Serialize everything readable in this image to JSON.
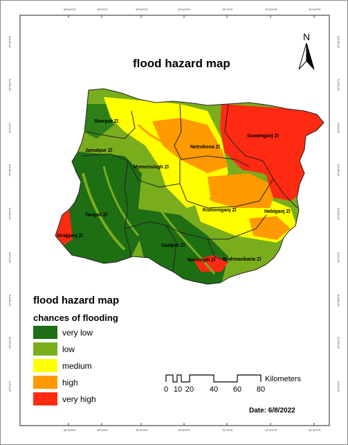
{
  "map": {
    "title": "flood hazard map",
    "north_label": "N",
    "date": "Date: 6/8/2022",
    "ticks": {
      "top": [
        "89°40'0\"E",
        "90°0'0\"E",
        "90°20'0\"E",
        "90°40'0\"E",
        "91°0'0\"E",
        "91°20'0\"E",
        "91°40'0\"E"
      ],
      "bottom": [
        "89°40'0\"E",
        "90°0'0\"E",
        "90°20'0\"E",
        "90°40'0\"E",
        "91°0'0\"E",
        "91°20'0\"E",
        "91°40'0\"E"
      ],
      "left": [
        "25°40'0\"N",
        "25°20'0\"N",
        "25°0'0\"N",
        "24°40'0\"N",
        "24°20'0\"N",
        "24°0'0\"N",
        "23°40'0\"N",
        "23°20'0\"N",
        "23°0'0\"N"
      ],
      "right": [
        "25°40'0\"N",
        "25°20'0\"N",
        "25°0'0\"N",
        "24°40'0\"N",
        "24°20'0\"N",
        "24°0'0\"N",
        "23°40'0\"N",
        "23°20'0\"N",
        "23°0'0\"N"
      ]
    },
    "districts": {
      "sherpur": "Sherpur Zl",
      "jamalpur": "Jamalpur Zl",
      "netrokona": "Netrokona Zl",
      "sunamganj": "Sunamganj Zl",
      "mymensingh": "Mymensingh Zl",
      "tangail": "Tangail Zl",
      "kishoreganj": "Kishoreganj Zl",
      "habiganj": "Habiganj Zl",
      "sirajganj": "Sirajganj Zl",
      "gazipur": "Gazipur Zl",
      "narsingdi": "Narsingdi Zl",
      "brahmanbaria": "Brahmanbaria Zl"
    }
  },
  "legend": {
    "title": "flood hazard map",
    "subtitle": "chances of flooding",
    "classes": [
      {
        "label": "very low",
        "color": "#1e6e14"
      },
      {
        "label": "low",
        "color": "#7aad1e"
      },
      {
        "label": "medium",
        "color": "#ffff00"
      },
      {
        "label": "high",
        "color": "#ff9a00"
      },
      {
        "label": "very high",
        "color": "#ff2a12"
      }
    ]
  },
  "scale_bar": {
    "unit": "Kilometers",
    "labels": [
      "0",
      "10",
      "20",
      "40",
      "60",
      "80"
    ]
  }
}
